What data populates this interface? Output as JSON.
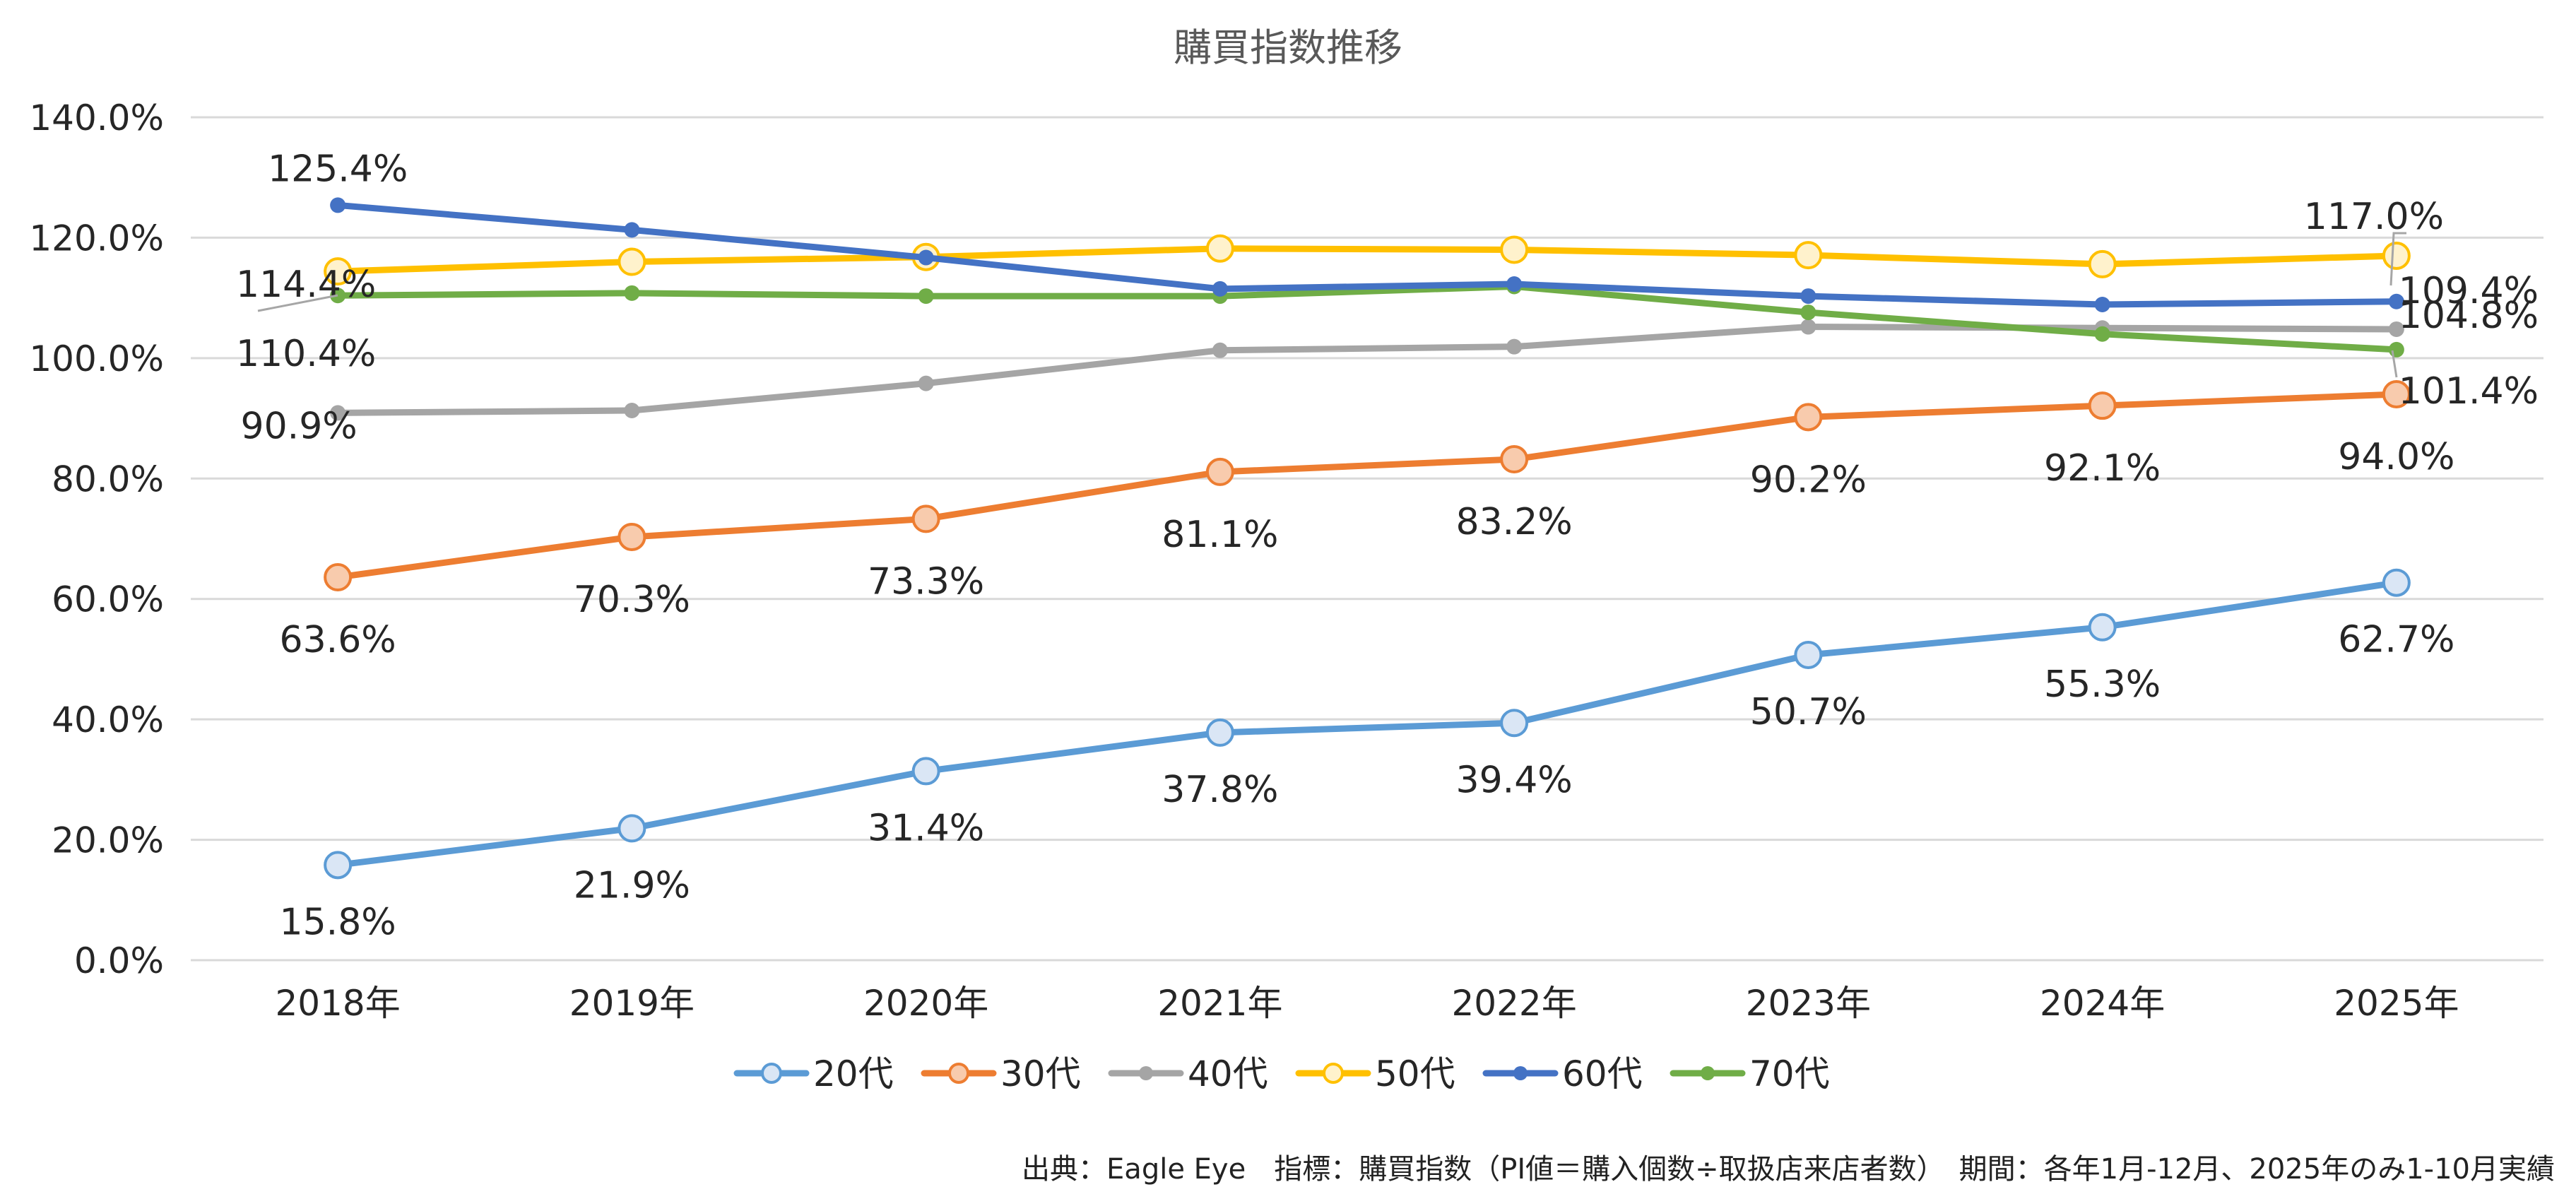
{
  "source_note": "出典：Eagle Eye　指標：購買指数（PI値＝購入個数÷取扱店来店者数）　期間：各年1月-12月、2025年のみ1-10月実績",
  "chart_data": {
    "type": "line",
    "title": "購買指数推移",
    "xlabel": "",
    "ylabel": "",
    "categories": [
      "2018年",
      "2019年",
      "2020年",
      "2021年",
      "2022年",
      "2023年",
      "2024年",
      "2025年"
    ],
    "ylim": [
      0,
      140
    ],
    "yticks": [
      "0.0%",
      "20.0%",
      "40.0%",
      "60.0%",
      "80.0%",
      "100.0%",
      "120.0%",
      "140.0%"
    ],
    "grid": "horizontal",
    "legend_position": "bottom",
    "series": [
      {
        "name": "20代",
        "color": "#5B9BD5",
        "fill": "#DAE6F5",
        "marker": "hollow-circle",
        "values": [
          15.8,
          21.9,
          31.4,
          37.8,
          39.4,
          50.7,
          55.3,
          62.7
        ],
        "labels": [
          "15.8%",
          "21.9%",
          "31.4%",
          "37.8%",
          "39.4%",
          "50.7%",
          "55.3%",
          "62.7%"
        ]
      },
      {
        "name": "30代",
        "color": "#ED7D31",
        "fill": "#F8CBAD",
        "marker": "hollow-circle",
        "values": [
          63.6,
          70.3,
          73.3,
          81.1,
          83.2,
          90.2,
          92.1,
          94.0
        ],
        "labels": [
          "63.6%",
          "70.3%",
          "73.3%",
          "81.1%",
          "83.2%",
          "90.2%",
          "92.1%",
          "94.0%"
        ]
      },
      {
        "name": "40代",
        "color": "#A5A5A5",
        "fill": "#A5A5A5",
        "marker": "dot",
        "values": [
          90.9,
          91.3,
          95.8,
          101.3,
          101.9,
          105.2,
          105.0,
          104.8
        ],
        "labels": [
          "90.9%",
          null,
          null,
          null,
          null,
          null,
          null,
          "104.8%"
        ]
      },
      {
        "name": "50代",
        "color": "#FFC000",
        "fill": "#FFF2CC",
        "marker": "hollow-circle",
        "values": [
          114.4,
          116.0,
          116.8,
          118.2,
          118.0,
          117.1,
          115.6,
          117.0
        ],
        "labels": [
          "114.4%",
          null,
          null,
          null,
          null,
          null,
          null,
          "117.0%"
        ]
      },
      {
        "name": "60代",
        "color": "#4472C4",
        "fill": "#4472C4",
        "marker": "dot",
        "values": [
          125.4,
          121.3,
          116.7,
          111.5,
          112.3,
          110.3,
          108.9,
          109.4
        ],
        "labels": [
          "125.4%",
          null,
          null,
          null,
          null,
          null,
          null,
          "109.4%"
        ]
      },
      {
        "name": "70代",
        "color": "#70AD47",
        "fill": "#70AD47",
        "marker": "dot",
        "values": [
          110.4,
          110.8,
          110.3,
          110.3,
          111.9,
          107.6,
          104.0,
          101.4
        ],
        "labels": [
          "110.4%",
          null,
          null,
          null,
          null,
          null,
          null,
          "101.4%"
        ]
      }
    ]
  }
}
